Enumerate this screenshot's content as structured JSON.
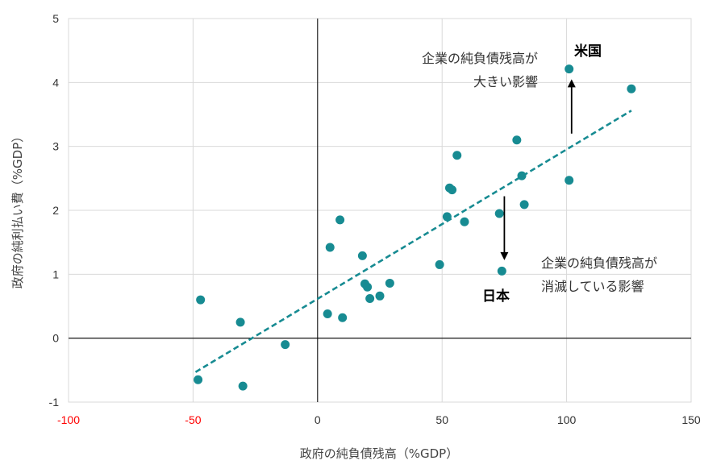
{
  "chart_data": {
    "type": "scatter",
    "xlabel": "政府の純負債残高（%GDP）",
    "ylabel": "政府の純利払い費（%GDP）",
    "xlim": [
      -100,
      150
    ],
    "ylim": [
      -1,
      5
    ],
    "x_ticks": [
      "-100",
      "-50",
      "0",
      "50",
      "100",
      "150"
    ],
    "y_ticks": [
      "-1",
      "0",
      "1",
      "2",
      "3",
      "4",
      "5"
    ],
    "grid": true,
    "colors": {
      "point": "#178b92",
      "trendline": "#178b92",
      "negative_tick": "#ff0000",
      "grid": "#d9d9d9",
      "zero_axis": "#000000",
      "arrow": "#000000"
    },
    "points": [
      {
        "x": -48,
        "y": -0.65
      },
      {
        "x": -47,
        "y": 0.6
      },
      {
        "x": -31,
        "y": 0.25
      },
      {
        "x": -30,
        "y": -0.75
      },
      {
        "x": -13,
        "y": -0.1
      },
      {
        "x": 4,
        "y": 0.38
      },
      {
        "x": 5,
        "y": 1.42
      },
      {
        "x": 9,
        "y": 1.85
      },
      {
        "x": 10,
        "y": 0.32
      },
      {
        "x": 18,
        "y": 1.29
      },
      {
        "x": 19,
        "y": 0.85
      },
      {
        "x": 20,
        "y": 0.8
      },
      {
        "x": 21,
        "y": 0.62
      },
      {
        "x": 25,
        "y": 0.66
      },
      {
        "x": 29,
        "y": 0.86
      },
      {
        "x": 49,
        "y": 1.15
      },
      {
        "x": 52,
        "y": 1.9
      },
      {
        "x": 53,
        "y": 2.35
      },
      {
        "x": 54,
        "y": 2.32
      },
      {
        "x": 56,
        "y": 2.86
      },
      {
        "x": 59,
        "y": 1.82
      },
      {
        "x": 73,
        "y": 1.95
      },
      {
        "x": 74,
        "y": 1.05
      },
      {
        "x": 80,
        "y": 3.1
      },
      {
        "x": 82,
        "y": 2.54
      },
      {
        "x": 83,
        "y": 2.09
      },
      {
        "x": 101,
        "y": 2.47
      },
      {
        "x": 101,
        "y": 4.21
      },
      {
        "x": 126,
        "y": 3.9
      }
    ],
    "trendline": {
      "x1": -49,
      "y1": -0.53,
      "x2": 126,
      "y2": 3.56
    },
    "arrows": [
      {
        "x": 102,
        "y_from": 3.2,
        "y_to": 4.05
      },
      {
        "x": 75,
        "y_from": 2.22,
        "y_to": 1.22
      }
    ],
    "annotations": {
      "us_label": "米国",
      "japan_label": "日本",
      "us_effect_line1": "企業の純負債残高が",
      "us_effect_line2": "大きい影響",
      "japan_effect_line1": "企業の純負債残高が",
      "japan_effect_line2": "消滅している影響"
    }
  }
}
